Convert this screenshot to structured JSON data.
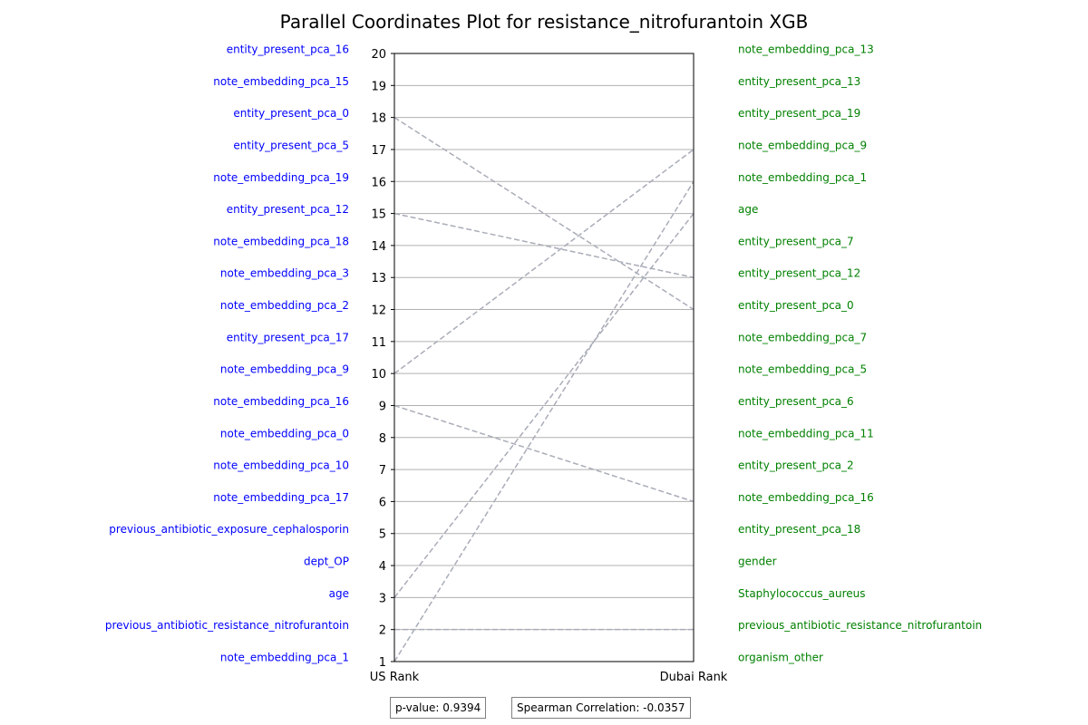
{
  "chart_data": {
    "type": "parallel_coordinates",
    "title": "Parallel Coordinates Plot for resistance_nitrofurantoin XGB",
    "axes": [
      "US Rank",
      "Dubai Rank"
    ],
    "ylim": [
      1,
      20
    ],
    "yticks": [
      "1",
      "2",
      "3",
      "4",
      "5",
      "6",
      "7",
      "8",
      "9",
      "10",
      "11",
      "12",
      "13",
      "14",
      "15",
      "16",
      "17",
      "18",
      "19",
      "20"
    ],
    "grid": true,
    "left_labels": [
      {
        "rank": 20,
        "label": "entity_present_pca_16"
      },
      {
        "rank": 19,
        "label": "note_embedding_pca_15"
      },
      {
        "rank": 18,
        "label": "entity_present_pca_0"
      },
      {
        "rank": 17,
        "label": "entity_present_pca_5"
      },
      {
        "rank": 16,
        "label": "note_embedding_pca_19"
      },
      {
        "rank": 15,
        "label": "entity_present_pca_12"
      },
      {
        "rank": 14,
        "label": "note_embedding_pca_18"
      },
      {
        "rank": 13,
        "label": "note_embedding_pca_3"
      },
      {
        "rank": 12,
        "label": "note_embedding_pca_2"
      },
      {
        "rank": 11,
        "label": "entity_present_pca_17"
      },
      {
        "rank": 10,
        "label": "note_embedding_pca_9"
      },
      {
        "rank": 9,
        "label": "note_embedding_pca_16"
      },
      {
        "rank": 8,
        "label": "note_embedding_pca_0"
      },
      {
        "rank": 7,
        "label": "note_embedding_pca_10"
      },
      {
        "rank": 6,
        "label": "note_embedding_pca_17"
      },
      {
        "rank": 5,
        "label": "previous_antibiotic_exposure_cephalosporin"
      },
      {
        "rank": 4,
        "label": "dept_OP"
      },
      {
        "rank": 3,
        "label": "age"
      },
      {
        "rank": 2,
        "label": "previous_antibiotic_resistance_nitrofurantoin"
      },
      {
        "rank": 1,
        "label": "note_embedding_pca_1"
      }
    ],
    "right_labels": [
      {
        "rank": 20,
        "label": "note_embedding_pca_13"
      },
      {
        "rank": 19,
        "label": "entity_present_pca_13"
      },
      {
        "rank": 18,
        "label": "entity_present_pca_19"
      },
      {
        "rank": 17,
        "label": "note_embedding_pca_9"
      },
      {
        "rank": 16,
        "label": "note_embedding_pca_1"
      },
      {
        "rank": 15,
        "label": "age"
      },
      {
        "rank": 14,
        "label": "entity_present_pca_7"
      },
      {
        "rank": 13,
        "label": "entity_present_pca_12"
      },
      {
        "rank": 12,
        "label": "entity_present_pca_0"
      },
      {
        "rank": 11,
        "label": "note_embedding_pca_7"
      },
      {
        "rank": 10,
        "label": "note_embedding_pca_5"
      },
      {
        "rank": 9,
        "label": "entity_present_pca_6"
      },
      {
        "rank": 8,
        "label": "note_embedding_pca_11"
      },
      {
        "rank": 7,
        "label": "entity_present_pca_2"
      },
      {
        "rank": 6,
        "label": "note_embedding_pca_16"
      },
      {
        "rank": 5,
        "label": "entity_present_pca_18"
      },
      {
        "rank": 4,
        "label": "gender"
      },
      {
        "rank": 3,
        "label": "Staphylococcus_aureus"
      },
      {
        "rank": 2,
        "label": "previous_antibiotic_resistance_nitrofurantoin"
      },
      {
        "rank": 1,
        "label": "organism_other"
      }
    ],
    "lines": [
      {
        "us_rank": 18,
        "dubai_rank": 12
      },
      {
        "us_rank": 15,
        "dubai_rank": 13
      },
      {
        "us_rank": 10,
        "dubai_rank": 17
      },
      {
        "us_rank": 9,
        "dubai_rank": 6
      },
      {
        "us_rank": 3,
        "dubai_rank": 15
      },
      {
        "us_rank": 2,
        "dubai_rank": 2
      },
      {
        "us_rank": 1,
        "dubai_rank": 16
      }
    ],
    "p_value_text": "p-value: 0.9394",
    "spearman_text": "Spearman Correlation: -0.0357"
  },
  "colors": {
    "left_labels": "#0000ff",
    "right_labels": "#008000",
    "lines": "#a9adb8",
    "grid": "#b0b0b0",
    "axis": "#000000"
  }
}
